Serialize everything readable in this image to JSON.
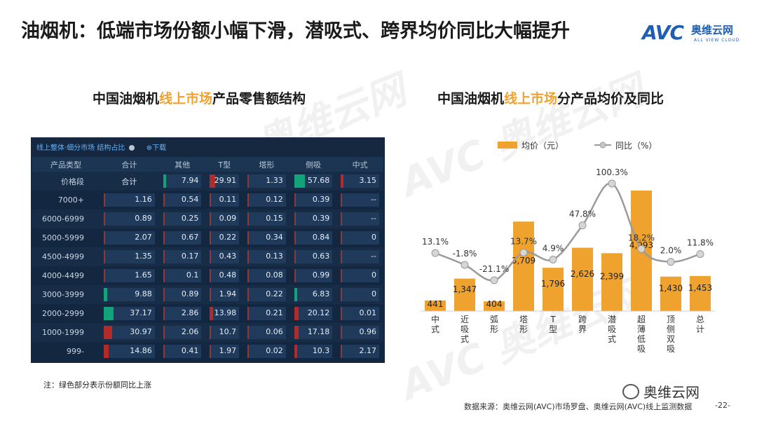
{
  "page": {
    "title": "油烟机：低端市场份额小幅下滑，潜吸式、跨界均价同比大幅提升",
    "logo_mark": "AVC",
    "logo_cn": "奥维云网",
    "logo_en": "ALL VIEW CLOUD",
    "watermark_text": "AVC 奥维云网",
    "watermark_sub": "ALL VIEW CLOUD",
    "note": "注：绿色部分表示份额同比上涨",
    "source": "数据来源：奥维云网(AVC)市场罗盘、奥维云网(AVC)线上监测数据",
    "page_number": "-22-",
    "wechat_label": "奥维云网"
  },
  "left": {
    "title_pre": "中国油烟机",
    "title_hl": "线上市场",
    "title_post": "产品零售额结构"
  },
  "right": {
    "title_pre": "中国油烟机",
    "title_hl": "线上市场",
    "title_post": "分产品均价及同比"
  },
  "table": {
    "toolbar": {
      "tab1": "线上整体",
      "tab2": "细分市场",
      "tab3": "结构占比",
      "download": "下载"
    },
    "corner_header": "产品类型",
    "row_header_label": "价格段",
    "columns": [
      "合计",
      "其他",
      "T型",
      "塔形",
      "侧吸",
      "中式"
    ],
    "rows": [
      {
        "label": "价格段",
        "values": [
          "7.94",
          "29.91",
          "1.33",
          "57.68",
          "3.15"
        ],
        "colors": [
          "green",
          "red",
          "none",
          "green",
          "red"
        ]
      },
      {
        "label": "7000+",
        "values": [
          "1.16",
          "0.54",
          "0.11",
          "0.12",
          "0.39",
          "--"
        ],
        "colors": [
          "none",
          "none",
          "none",
          "none",
          "none",
          "none"
        ]
      },
      {
        "label": "6000-6999",
        "values": [
          "0.89",
          "0.25",
          "0.09",
          "0.15",
          "0.39",
          "--"
        ],
        "colors": [
          "none",
          "none",
          "none",
          "none",
          "none",
          "none"
        ]
      },
      {
        "label": "5000-5999",
        "values": [
          "2.07",
          "0.67",
          "0.22",
          "0.34",
          "0.84",
          "0"
        ],
        "colors": [
          "none",
          "none",
          "none",
          "none",
          "none",
          "none"
        ]
      },
      {
        "label": "4500-4999",
        "values": [
          "1.35",
          "0.17",
          "0.43",
          "0.13",
          "0.63",
          "--"
        ],
        "colors": [
          "none",
          "none",
          "none",
          "none",
          "none",
          "none"
        ]
      },
      {
        "label": "4000-4499",
        "values": [
          "1.65",
          "0.1",
          "0.48",
          "0.08",
          "0.99",
          "0"
        ],
        "colors": [
          "none",
          "none",
          "none",
          "none",
          "none",
          "none"
        ]
      },
      {
        "label": "3000-3999",
        "values": [
          "9.88",
          "0.89",
          "1.94",
          "0.22",
          "6.83",
          "0"
        ],
        "colors": [
          "green",
          "none",
          "none",
          "none",
          "green",
          "none"
        ]
      },
      {
        "label": "2000-2999",
        "values": [
          "37.17",
          "2.86",
          "13.98",
          "0.21",
          "20.12",
          "0.01"
        ],
        "colors": [
          "green",
          "none",
          "red",
          "none",
          "red",
          "none"
        ]
      },
      {
        "label": "1000-1999",
        "values": [
          "30.97",
          "2.06",
          "10.7",
          "0.06",
          "17.18",
          "0.96"
        ],
        "colors": [
          "red",
          "none",
          "none",
          "none",
          "red",
          "none"
        ]
      },
      {
        "label": "999-",
        "values": [
          "14.86",
          "0.41",
          "1.97",
          "0.02",
          "10.3",
          "2.17"
        ],
        "colors": [
          "red",
          "none",
          "none",
          "none",
          "red",
          "none"
        ]
      }
    ],
    "total_row": {
      "label": "价格段",
      "first": "合计"
    }
  },
  "colors": {
    "bar": "#f0a22e",
    "line": "#9a9a9a",
    "green": "#12a37a",
    "red": "#b22a2a",
    "accent": "#f0a22e",
    "table_bg": "#152840"
  },
  "chart_data": {
    "type": "bar",
    "title": "中国油烟机线上市场分产品均价及同比",
    "categories": [
      "中式",
      "近吸式",
      "弧形",
      "塔形",
      "T型",
      "跨界",
      "潜吸式",
      "超薄低吸",
      "顶侧双吸",
      "总计"
    ],
    "category_labels": [
      [
        "中",
        "式"
      ],
      [
        "近",
        "吸",
        "式"
      ],
      [
        "弧",
        "形"
      ],
      [
        "塔",
        "形"
      ],
      [
        "T",
        "型"
      ],
      [
        "跨",
        "界"
      ],
      [
        "潜",
        "吸",
        "式"
      ],
      [
        "超",
        "薄",
        "低",
        "吸"
      ],
      [
        "顶",
        "侧",
        "双",
        "吸"
      ],
      [
        "总",
        "计"
      ]
    ],
    "series": [
      {
        "name": "均价（元）",
        "type": "bar",
        "values": [
          441,
          1347,
          404,
          3709,
          1796,
          2626,
          2399,
          4993,
          1430,
          1453
        ],
        "labels": [
          "441",
          "1,347",
          "404",
          "3,709",
          "1,796",
          "2,626",
          "2,399",
          "4,993",
          "1,430",
          "1,453"
        ]
      },
      {
        "name": "同比（%）",
        "type": "line",
        "values": [
          13.1,
          -1.8,
          -21.1,
          13.7,
          4.9,
          47.8,
          100.3,
          18.2,
          2.0,
          11.8
        ],
        "labels": [
          "13.1%",
          "-1.8%",
          "-21.1%",
          "13.7%",
          "4.9%",
          "47.8%",
          "100.3%",
          "18.2%",
          "2.0%",
          "11.8%"
        ]
      }
    ],
    "legend": "top-center"
  }
}
